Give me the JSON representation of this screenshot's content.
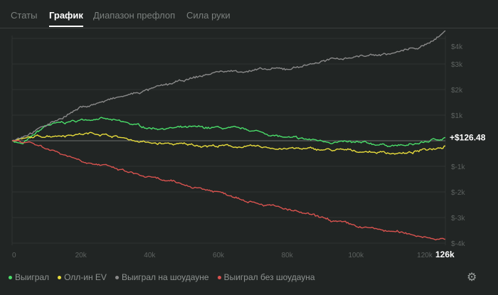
{
  "tabs": [
    {
      "label": "Статы"
    },
    {
      "label": "График",
      "active": true
    },
    {
      "label": "Диапазон префлоп"
    },
    {
      "label": "Сила руки"
    }
  ],
  "current_value_label": "+$126.48",
  "chart_data": {
    "type": "line",
    "xlim": [
      0,
      126
    ],
    "ylim": [
      -4000,
      4300
    ],
    "x_ticks": [
      "0",
      "20k",
      "40k",
      "60k",
      "80k",
      "100k",
      "120k"
    ],
    "x_ticks_values": [
      0,
      20,
      40,
      60,
      80,
      100,
      120
    ],
    "x_end_label": "126k",
    "y_ticks": [
      "$4k",
      "$3k",
      "$2k",
      "$1k",
      "$-1k",
      "$-2k",
      "$-3k",
      "$-4k"
    ],
    "y_ticks_values": [
      4000,
      3000,
      2000,
      1000,
      -1000,
      -2000,
      -3000,
      -4000
    ],
    "series": [
      {
        "name": "Выиграл",
        "color": "#4ade6a",
        "x": [
          0,
          3,
          10,
          25,
          40,
          60,
          70,
          80,
          100,
          115,
          126
        ],
        "y": [
          0,
          -150,
          600,
          900,
          500,
          500,
          400,
          100,
          -100,
          -200,
          126.48
        ]
      },
      {
        "name": "Олл-ин EV",
        "color": "#e8dc3c",
        "x": [
          0,
          10,
          25,
          40,
          60,
          80,
          100,
          115,
          126
        ],
        "y": [
          0,
          200,
          300,
          -100,
          -200,
          -300,
          -400,
          -500,
          -200
        ]
      },
      {
        "name": "Выиграл на шоудауне",
        "color": "#8a8a8a",
        "x": [
          0,
          10,
          20,
          40,
          60,
          80,
          90,
          100,
          110,
          120,
          126
        ],
        "y": [
          0,
          600,
          1300,
          2000,
          2700,
          2800,
          3100,
          3300,
          3400,
          3700,
          4300
        ]
      },
      {
        "name": "Выиграл без шоудауна",
        "color": "#d9534f",
        "x": [
          0,
          5,
          20,
          40,
          60,
          80,
          100,
          126
        ],
        "y": [
          0,
          -50,
          -750,
          -1450,
          -2000,
          -2700,
          -3350,
          -3850
        ]
      }
    ]
  }
}
